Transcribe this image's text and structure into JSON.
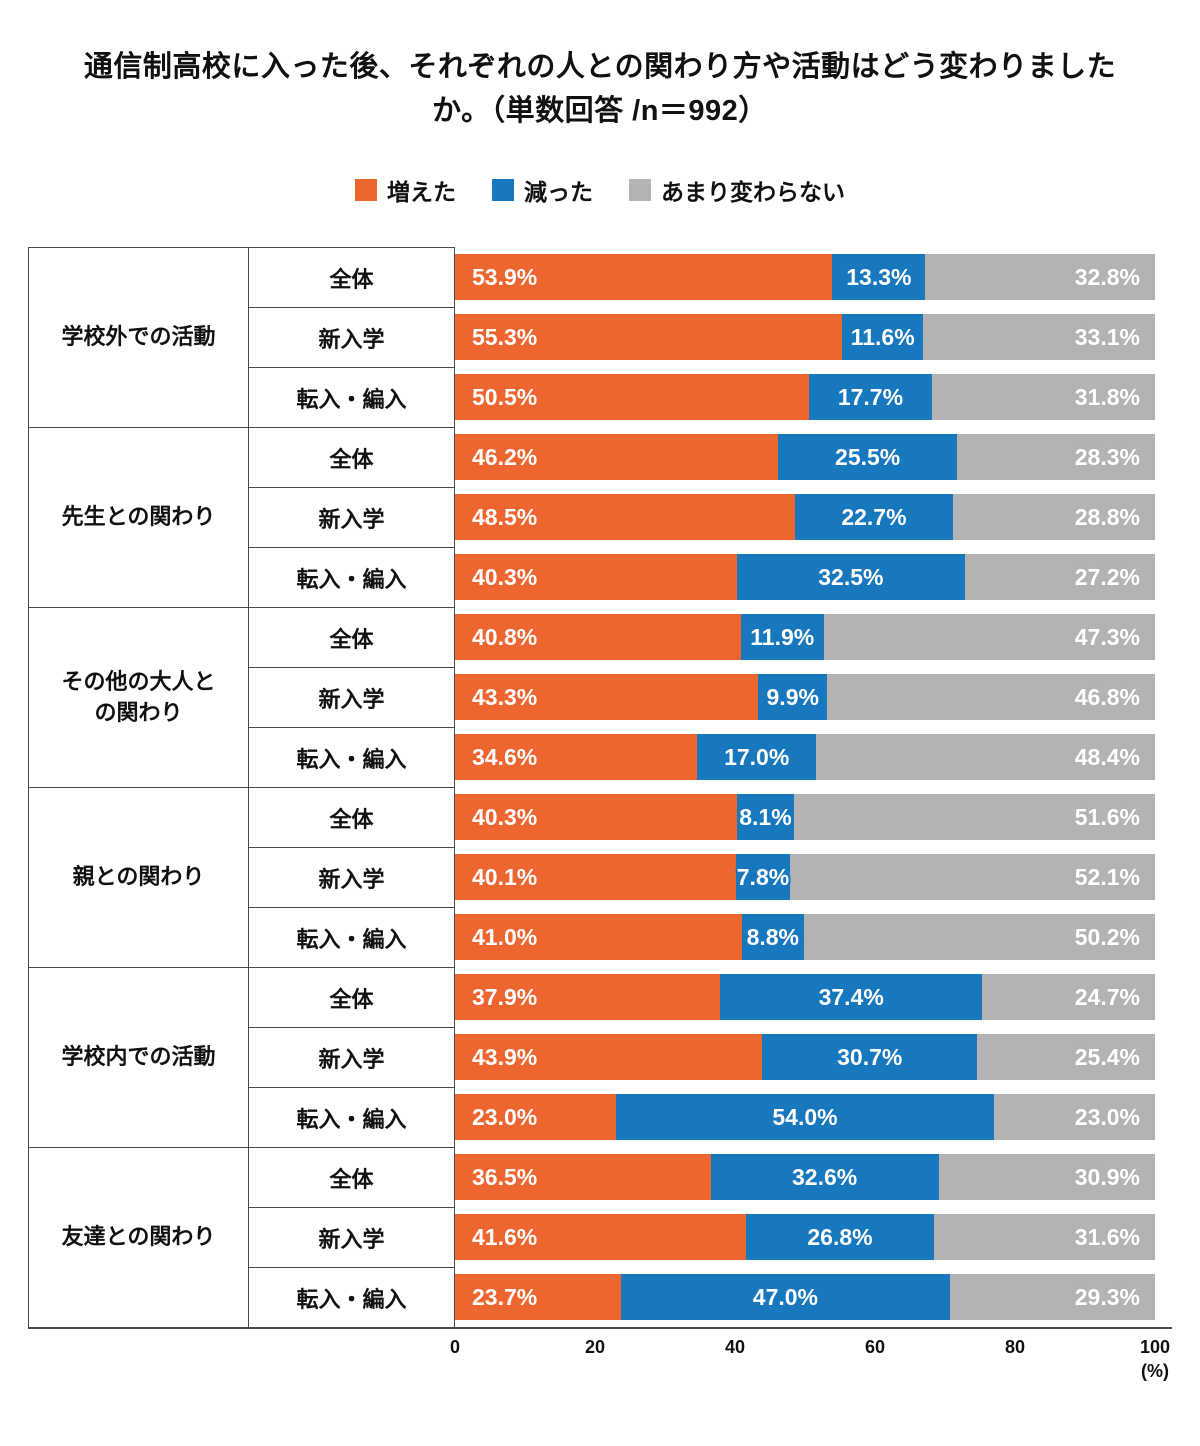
{
  "title": "通信制高校に入った後、それぞれの人との関わり方や活動はどう変わりましたか。（単数回答 /n＝992）",
  "legend": [
    {
      "label": "増えた",
      "color": "#ED652F"
    },
    {
      "label": "減った",
      "color": "#1778BE"
    },
    {
      "label": "あまり変わらない",
      "color": "#B3B3B3"
    }
  ],
  "axis": {
    "ticks": [
      0,
      20,
      40,
      60,
      80,
      100
    ],
    "unit": "(%)"
  },
  "chart_data": {
    "type": "bar",
    "orientation": "horizontal",
    "stacked": true,
    "xlim": [
      0,
      100
    ],
    "series_names": [
      "増えた",
      "減った",
      "あまり変わらない"
    ],
    "series_keys": [
      "increased",
      "decreased",
      "unchanged"
    ],
    "groups": [
      {
        "label": "学校外での活動",
        "rows": [
          {
            "label": "全体",
            "values": [
              53.9,
              13.3,
              32.8
            ]
          },
          {
            "label": "新入学",
            "values": [
              55.3,
              11.6,
              33.1
            ]
          },
          {
            "label": "転入・編入",
            "values": [
              50.5,
              17.7,
              31.8
            ]
          }
        ]
      },
      {
        "label": "先生との関わり",
        "rows": [
          {
            "label": "全体",
            "values": [
              46.2,
              25.5,
              28.3
            ]
          },
          {
            "label": "新入学",
            "values": [
              48.5,
              22.7,
              28.8
            ]
          },
          {
            "label": "転入・編入",
            "values": [
              40.3,
              32.5,
              27.2
            ]
          }
        ]
      },
      {
        "label": "その他の大人と\nの関わり",
        "rows": [
          {
            "label": "全体",
            "values": [
              40.8,
              11.9,
              47.3
            ]
          },
          {
            "label": "新入学",
            "values": [
              43.3,
              9.9,
              46.8
            ]
          },
          {
            "label": "転入・編入",
            "values": [
              34.6,
              17.0,
              48.4
            ]
          }
        ]
      },
      {
        "label": "親との関わり",
        "rows": [
          {
            "label": "全体",
            "values": [
              40.3,
              8.1,
              51.6
            ]
          },
          {
            "label": "新入学",
            "values": [
              40.1,
              7.8,
              52.1
            ]
          },
          {
            "label": "転入・編入",
            "values": [
              41.0,
              8.8,
              50.2
            ]
          }
        ]
      },
      {
        "label": "学校内での活動",
        "rows": [
          {
            "label": "全体",
            "values": [
              37.9,
              37.4,
              24.7
            ]
          },
          {
            "label": "新入学",
            "values": [
              43.9,
              30.7,
              25.4
            ]
          },
          {
            "label": "転入・編入",
            "values": [
              23.0,
              54.0,
              23.0
            ]
          }
        ]
      },
      {
        "label": "友達との関わり",
        "rows": [
          {
            "label": "全体",
            "values": [
              36.5,
              32.6,
              30.9
            ]
          },
          {
            "label": "新入学",
            "values": [
              41.6,
              26.8,
              31.6
            ]
          },
          {
            "label": "転入・編入",
            "values": [
              23.7,
              47.0,
              29.3
            ]
          }
        ]
      }
    ]
  }
}
